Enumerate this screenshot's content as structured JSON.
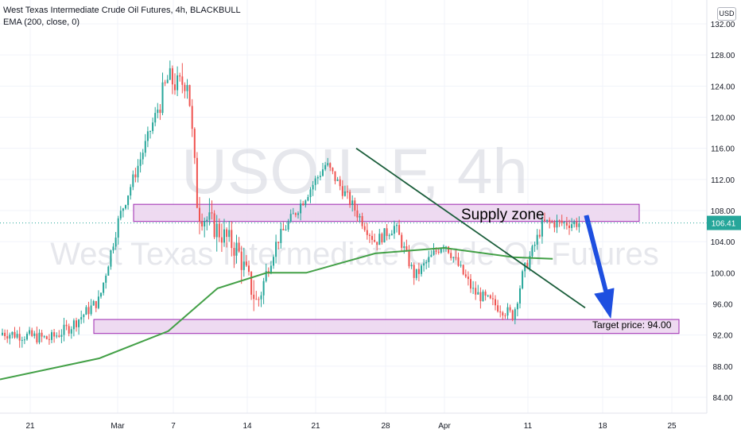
{
  "legend": {
    "title": "West Texas Intermediate Crude Oil Futures, 4h, BLACKBULL",
    "indicator": "EMA (200, close, 0)"
  },
  "currency": "USD",
  "watermark": {
    "symbol": "USOIL.F, 4h",
    "description": "West Texas Intermediate Crude Oil Futures"
  },
  "chart_data": {
    "type": "candlestick",
    "y_axis": {
      "ticks": [
        84.0,
        88.0,
        92.0,
        96.0,
        100.0,
        104.0,
        108.0,
        112.0,
        116.0,
        120.0,
        124.0,
        128.0,
        132.0
      ],
      "range": [
        81.8,
        133.0
      ]
    },
    "x_axis": {
      "labels": [
        "21",
        "Mar",
        "7",
        "14",
        "21",
        "28",
        "Apr",
        "11",
        "18",
        "25"
      ]
    },
    "last_price": "106.41",
    "ohlc_anchors": [
      {
        "date": "Feb 17",
        "close": 92.5
      },
      {
        "date": "Feb 23",
        "close": 91.5
      },
      {
        "date": "Feb 25",
        "close": 93.0
      },
      {
        "date": "Feb 28",
        "close": 96.5
      },
      {
        "date": "Mar 2",
        "close": 107.0
      },
      {
        "date": "Mar 4",
        "close": 114.0
      },
      {
        "date": "Mar 7",
        "close": 125.0
      },
      {
        "date": "Mar 8",
        "close": 124.0
      },
      {
        "date": "Mar 9",
        "close": 125.0
      },
      {
        "date": "Mar 10",
        "close": 108.0
      },
      {
        "date": "Mar 14",
        "close": 103.0
      },
      {
        "date": "Mar 16",
        "close": 96.0
      },
      {
        "date": "Mar 18",
        "close": 104.0
      },
      {
        "date": "Mar 21",
        "close": 110.0
      },
      {
        "date": "Mar 23",
        "close": 114.0
      },
      {
        "date": "Mar 24",
        "close": 112.0
      },
      {
        "date": "Mar 28",
        "close": 104.0
      },
      {
        "date": "Mar 30",
        "close": 106.0
      },
      {
        "date": "Apr 1",
        "close": 99.5
      },
      {
        "date": "Apr 4",
        "close": 104.0
      },
      {
        "date": "Apr 7",
        "close": 97.5
      },
      {
        "date": "Apr 11",
        "close": 94.5
      },
      {
        "date": "Apr 12",
        "close": 100.0
      },
      {
        "date": "Apr 13",
        "close": 103.0
      },
      {
        "date": "Apr 14",
        "close": 106.4
      }
    ],
    "ema200": [
      {
        "date": "Feb 14",
        "value": 86.3
      },
      {
        "date": "Feb 28",
        "value": 89.0
      },
      {
        "date": "Mar 7",
        "value": 92.5
      },
      {
        "date": "Mar 12",
        "value": 98.0
      },
      {
        "date": "Mar 17",
        "value": 100.0
      },
      {
        "date": "Mar 21",
        "value": 100.0
      },
      {
        "date": "Mar 28",
        "value": 102.5
      },
      {
        "date": "Apr 4",
        "value": 103.2
      },
      {
        "date": "Apr 11",
        "value": 102.0
      },
      {
        "date": "Apr 15",
        "value": 101.8
      }
    ],
    "annotations": {
      "supply_zone": {
        "label": "Supply zone",
        "y_low": 106.6,
        "y_high": 108.8
      },
      "demand_zone": {
        "y_low": 92.2,
        "y_high": 94.0
      },
      "target": {
        "label": "Target price: 94.00"
      },
      "trendline": {
        "from": {
          "date": "Mar 24",
          "price": 116.0
        },
        "to": {
          "date": "Apr 15",
          "price": 95.5
        }
      }
    },
    "colors": {
      "up": "#26a69a",
      "down": "#ef5350",
      "ema": "#43a047",
      "zone_fill": "#ebd3ef",
      "zone_border": "#9c27b0",
      "arrow": "#1e4fe0",
      "trendline": "#1b5e3b",
      "price_label": "#26a69a"
    },
    "grid": true
  }
}
